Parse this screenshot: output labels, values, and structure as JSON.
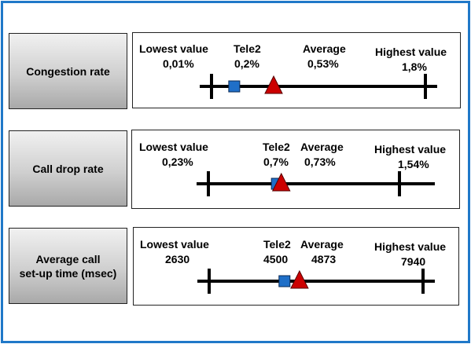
{
  "rows": [
    {
      "label": "Congestion rate",
      "lowest_label": "Lowest value",
      "lowest_value": "0,01%",
      "tele2_label": "Tele2",
      "tele2_value": "0,2%",
      "average_label": "Average",
      "average_value": "0,53%",
      "highest_label": "Highest value",
      "highest_value": "1,8%",
      "scale": {
        "min": 0.01,
        "max": 1.8,
        "tele2": 0.2,
        "average": 0.53
      }
    },
    {
      "label": "Call drop rate",
      "lowest_label": "Lowest value",
      "lowest_value": "0,23%",
      "tele2_label": "Tele2",
      "tele2_value": "0,7%",
      "average_label": "Average",
      "average_value": "0,73%",
      "highest_label": "Highest value",
      "highest_value": "1,54%",
      "scale": {
        "min": 0.23,
        "max": 1.54,
        "tele2": 0.7,
        "average": 0.73
      }
    },
    {
      "label_line1": "Average call",
      "label_line2": "set-up time (msec)",
      "lowest_label": "Lowest value",
      "lowest_value": "2630",
      "tele2_label": "Tele2",
      "tele2_value": "4500",
      "average_label": "Average",
      "average_value": "4873",
      "highest_label": "Highest value",
      "highest_value": "7940",
      "scale": {
        "min": 2630,
        "max": 7940,
        "tele2": 4500,
        "average": 4873
      }
    }
  ],
  "colors": {
    "frame": "#1f78c8",
    "tele2_marker": "#1f6fc8",
    "average_marker": "#cc0000"
  },
  "legend": {
    "tele2_marker_icon": "blue-square",
    "average_marker_icon": "red-triangle"
  }
}
